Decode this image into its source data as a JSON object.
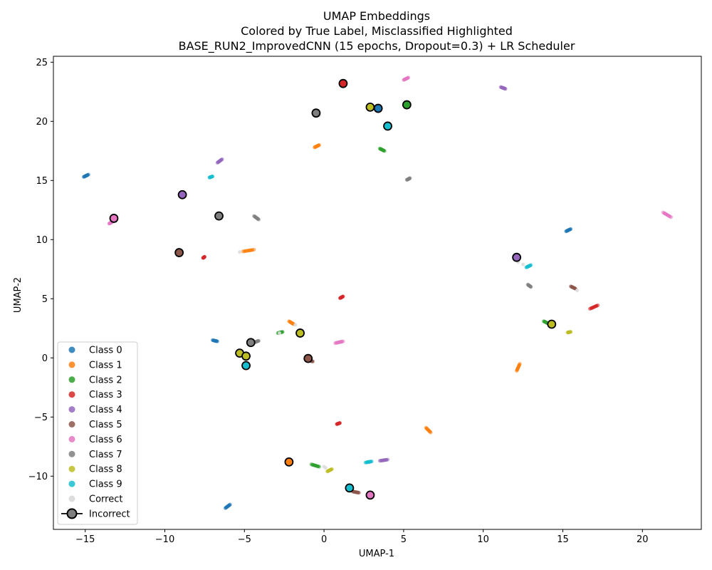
{
  "chart_data": {
    "type": "scatter",
    "title_lines": [
      "UMAP Embeddings",
      "Colored by True Label, Misclassified Highlighted",
      "BASE_RUN2_ImprovedCNN (15 epochs, Dropout=0.3) + LR Scheduler"
    ],
    "xlabel": "UMAP-1",
    "ylabel": "UMAP-2",
    "xlim": [
      -17,
      23.7
    ],
    "ylim": [
      -14.5,
      25.5
    ],
    "xticks": [
      -15,
      -10,
      -5,
      0,
      5,
      10,
      15,
      20
    ],
    "yticks": [
      -10,
      -5,
      0,
      5,
      10,
      15,
      20,
      25
    ],
    "grid": false,
    "legend_position": "lower-left",
    "legend": [
      {
        "label": "Class 0",
        "color": "#1f77b4"
      },
      {
        "label": "Class 1",
        "color": "#ff7f0e"
      },
      {
        "label": "Class 2",
        "color": "#2ca02c"
      },
      {
        "label": "Class 3",
        "color": "#d62728"
      },
      {
        "label": "Class 4",
        "color": "#9467bd"
      },
      {
        "label": "Class 5",
        "color": "#8c564b"
      },
      {
        "label": "Class 6",
        "color": "#e377c2"
      },
      {
        "label": "Class 7",
        "color": "#7f7f7f"
      },
      {
        "label": "Class 8",
        "color": "#bcbd22"
      },
      {
        "label": "Class 9",
        "color": "#17becf"
      },
      {
        "label": "Correct",
        "color": "#dddddd"
      },
      {
        "label": "Incorrect",
        "color": "#7f7f7f"
      }
    ],
    "class_colors": [
      "#1f77b4",
      "#ff7f0e",
      "#2ca02c",
      "#d62728",
      "#9467bd",
      "#8c564b",
      "#e377c2",
      "#7f7f7f",
      "#bcbd22",
      "#17becf"
    ],
    "correct_clusters": [
      {
        "cls": 0,
        "x1": -15.1,
        "y1": 15.3,
        "x2": -14.8,
        "y2": 15.5
      },
      {
        "cls": 0,
        "x1": 15.2,
        "y1": 10.7,
        "x2": 15.5,
        "y2": 10.9
      },
      {
        "cls": 0,
        "x1": -7.0,
        "y1": 1.5,
        "x2": -6.7,
        "y2": 1.4
      },
      {
        "cls": 0,
        "x1": -6.2,
        "y1": -12.7,
        "x2": -5.9,
        "y2": -12.4
      },
      {
        "cls": 1,
        "x1": -0.6,
        "y1": 17.8,
        "x2": -0.3,
        "y2": 18.0
      },
      {
        "cls": 1,
        "x1": -5.1,
        "y1": 9.0,
        "x2": -4.4,
        "y2": 9.15
      },
      {
        "cls": 1,
        "x1": -2.2,
        "y1": 3.1,
        "x2": -1.9,
        "y2": 2.85
      },
      {
        "cls": 1,
        "x1": 12.1,
        "y1": -1.1,
        "x2": 12.3,
        "y2": -0.5
      },
      {
        "cls": 1,
        "x1": 6.4,
        "y1": -5.9,
        "x2": 6.7,
        "y2": -6.3
      },
      {
        "cls": 2,
        "x1": 3.5,
        "y1": 17.7,
        "x2": 3.8,
        "y2": 17.5
      },
      {
        "cls": 2,
        "x1": -2.9,
        "y1": 2.1,
        "x2": -2.6,
        "y2": 2.2
      },
      {
        "cls": 2,
        "x1": 13.8,
        "y1": 3.1,
        "x2": 14.1,
        "y2": 2.9
      },
      {
        "cls": 2,
        "x1": -0.8,
        "y1": -9.0,
        "x2": -0.3,
        "y2": -9.2
      },
      {
        "cls": 3,
        "x1": -7.6,
        "y1": 8.45,
        "x2": -7.5,
        "y2": 8.55
      },
      {
        "cls": 3,
        "x1": 1.0,
        "y1": 5.05,
        "x2": 1.2,
        "y2": 5.2
      },
      {
        "cls": 3,
        "x1": 16.7,
        "y1": 4.15,
        "x2": 17.2,
        "y2": 4.45
      },
      {
        "cls": 3,
        "x1": 0.8,
        "y1": -5.6,
        "x2": 1.0,
        "y2": -5.5
      },
      {
        "cls": 4,
        "x1": 11.1,
        "y1": 22.9,
        "x2": 11.4,
        "y2": 22.75
      },
      {
        "cls": 4,
        "x1": -6.7,
        "y1": 16.5,
        "x2": -6.4,
        "y2": 16.8
      },
      {
        "cls": 4,
        "x1": 3.5,
        "y1": -8.7,
        "x2": 4.0,
        "y2": -8.6
      },
      {
        "cls": 5,
        "x1": 15.5,
        "y1": 6.05,
        "x2": 15.8,
        "y2": 5.85
      },
      {
        "cls": 5,
        "x1": 1.8,
        "y1": -11.3,
        "x2": 2.2,
        "y2": -11.4
      },
      {
        "cls": 5,
        "x1": -1.0,
        "y1": -0.2,
        "x2": -0.7,
        "y2": -0.3
      },
      {
        "cls": 6,
        "x1": 5.0,
        "y1": 23.5,
        "x2": 5.3,
        "y2": 23.7
      },
      {
        "cls": 6,
        "x1": 21.3,
        "y1": 12.3,
        "x2": 21.8,
        "y2": 11.9
      },
      {
        "cls": 6,
        "x1": 0.7,
        "y1": 1.25,
        "x2": 1.2,
        "y2": 1.4
      },
      {
        "cls": 6,
        "x1": -13.5,
        "y1": 11.35,
        "x2": -13.3,
        "y2": 11.5
      },
      {
        "cls": 7,
        "x1": -4.4,
        "y1": 12.0,
        "x2": -4.1,
        "y2": 11.7
      },
      {
        "cls": 7,
        "x1": 5.2,
        "y1": 15.05,
        "x2": 5.4,
        "y2": 15.2
      },
      {
        "cls": 7,
        "x1": 12.8,
        "y1": 6.2,
        "x2": 13.0,
        "y2": 6.0
      },
      {
        "cls": 7,
        "x1": -4.4,
        "y1": 1.3,
        "x2": -4.1,
        "y2": 1.45
      },
      {
        "cls": 8,
        "x1": 15.3,
        "y1": 2.15,
        "x2": 15.5,
        "y2": 2.2
      },
      {
        "cls": 8,
        "x1": 0.2,
        "y1": -9.6,
        "x2": 0.5,
        "y2": -9.4
      },
      {
        "cls": 9,
        "x1": -7.2,
        "y1": 15.25,
        "x2": -7.0,
        "y2": 15.35
      },
      {
        "cls": 9,
        "x1": 12.7,
        "y1": 7.65,
        "x2": 13.0,
        "y2": 7.85
      },
      {
        "cls": 9,
        "x1": 2.6,
        "y1": -8.85,
        "x2": 3.0,
        "y2": -8.75
      }
    ],
    "correct_points": [
      [
        12.5,
        7.9
      ],
      [
        15.9,
        5.7
      ],
      [
        0.1,
        -9.3
      ],
      [
        -0.3,
        20.5
      ],
      [
        -2.8,
        2.1
      ],
      [
        -1.8,
        2.8
      ],
      [
        12.2,
        8.1
      ],
      [
        0.0,
        -9.2
      ],
      [
        -5.3,
        8.95
      ]
    ],
    "misclassified": [
      {
        "x": 1.2,
        "y": 23.2,
        "cls": 3
      },
      {
        "x": 2.9,
        "y": 21.2,
        "cls": 8
      },
      {
        "x": 3.4,
        "y": 21.1,
        "cls": 0
      },
      {
        "x": 5.2,
        "y": 21.4,
        "cls": 2
      },
      {
        "x": -0.5,
        "y": 20.7,
        "cls": 7
      },
      {
        "x": 4.0,
        "y": 19.6,
        "cls": 9
      },
      {
        "x": -8.9,
        "y": 13.8,
        "cls": 4
      },
      {
        "x": -13.2,
        "y": 11.8,
        "cls": 6
      },
      {
        "x": -6.6,
        "y": 12.0,
        "cls": 7
      },
      {
        "x": -9.1,
        "y": 8.9,
        "cls": 5
      },
      {
        "x": 12.1,
        "y": 8.5,
        "cls": 4
      },
      {
        "x": 14.3,
        "y": 2.85,
        "cls": 8
      },
      {
        "x": -1.5,
        "y": 2.1,
        "cls": 8
      },
      {
        "x": -4.6,
        "y": 1.3,
        "cls": 7
      },
      {
        "x": -5.3,
        "y": 0.4,
        "cls": 8
      },
      {
        "x": -4.9,
        "y": 0.15,
        "cls": 8
      },
      {
        "x": -1.0,
        "y": -0.05,
        "cls": 5
      },
      {
        "x": -4.9,
        "y": -0.65,
        "cls": 9
      },
      {
        "x": -2.2,
        "y": -8.8,
        "cls": 1
      },
      {
        "x": 1.6,
        "y": -11.0,
        "cls": 9
      },
      {
        "x": 2.9,
        "y": -11.6,
        "cls": 6
      }
    ]
  }
}
